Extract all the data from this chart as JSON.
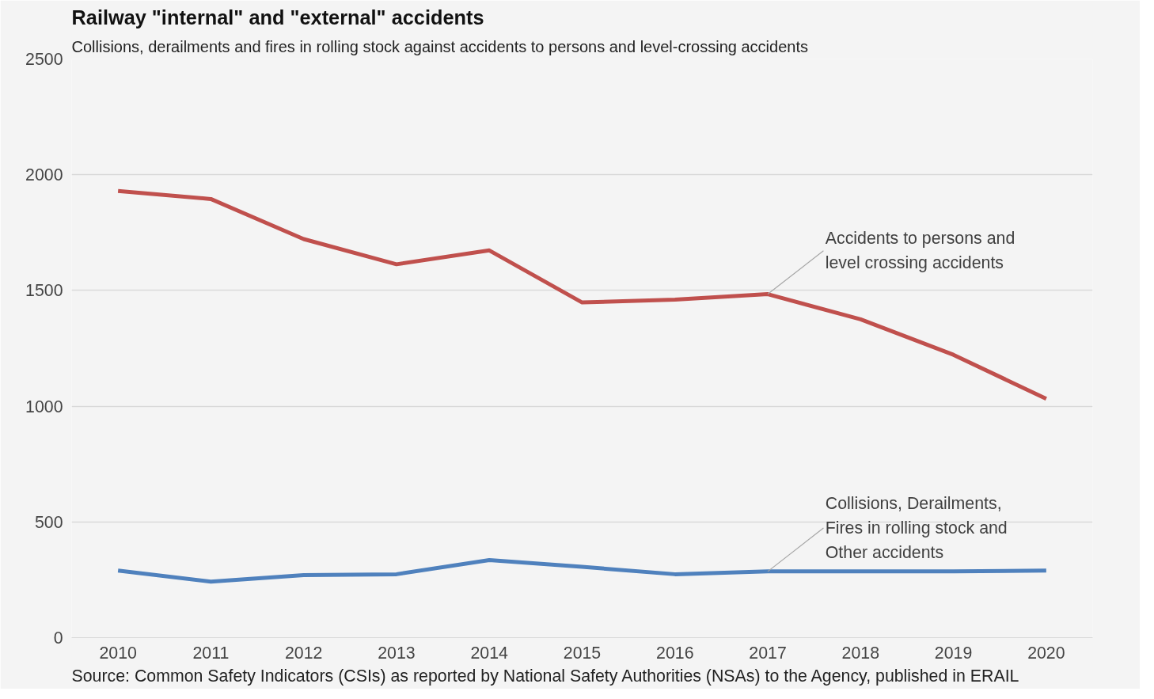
{
  "chart_data": {
    "type": "line",
    "title": "Railway \"internal\" and \"external\" accidents",
    "subtitle": "Collisions, derailments and fires in rolling stock against accidents to persons and level-crossing accidents",
    "categories": [
      "2010",
      "2011",
      "2012",
      "2013",
      "2014",
      "2015",
      "2016",
      "2017",
      "2018",
      "2019",
      "2020"
    ],
    "series": [
      {
        "color": "#c0504d",
        "values": [
          1930,
          1895,
          1722,
          1613,
          1673,
          1448,
          1460,
          1484,
          1375,
          1222,
          1032
        ]
      },
      {
        "color": "#4f81bd",
        "values": [
          290,
          242,
          270,
          274,
          335,
          306,
          274,
          286,
          286,
          286,
          290
        ]
      }
    ],
    "ylim": [
      0,
      2500
    ],
    "yticks": [
      0,
      500,
      1000,
      1500,
      2000,
      2500
    ],
    "grid": "y",
    "marker": "none",
    "line_style": "solid",
    "annotations": [
      {
        "text": "Accidents to persons and\nlevel crossing accidents",
        "x": "2017",
        "y": 1484
      },
      {
        "text": "Collisions, Derailments,\nFires in rolling stock and\nOther accidents",
        "x": "2017",
        "y": 286
      },
      "Source: Common Safety Indicators (CSIs) as reported by National Safety Authorities (NSAs) to the Agency, published in ERAIL"
    ]
  }
}
